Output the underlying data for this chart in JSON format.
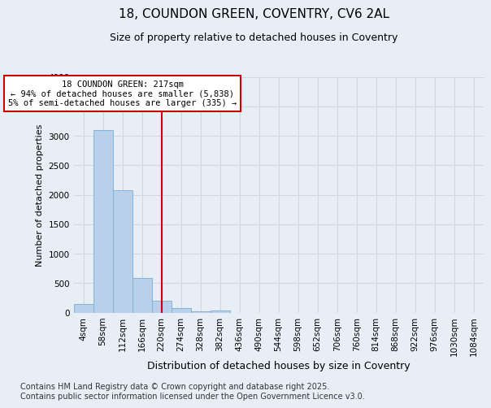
{
  "title1": "18, COUNDON GREEN, COVENTRY, CV6 2AL",
  "title2": "Size of property relative to detached houses in Coventry",
  "xlabel": "Distribution of detached houses by size in Coventry",
  "ylabel": "Number of detached properties",
  "bar_values": [
    150,
    3100,
    2080,
    580,
    205,
    70,
    25,
    40,
    0,
    0,
    0,
    0,
    0,
    0,
    0,
    0,
    0,
    0,
    0,
    0,
    0
  ],
  "bin_labels": [
    "4sqm",
    "58sqm",
    "112sqm",
    "166sqm",
    "220sqm",
    "274sqm",
    "328sqm",
    "382sqm",
    "436sqm",
    "490sqm",
    "544sqm",
    "598sqm",
    "652sqm",
    "706sqm",
    "760sqm",
    "814sqm",
    "868sqm",
    "922sqm",
    "976sqm",
    "1030sqm",
    "1084sqm"
  ],
  "bar_color": "#b8d0ea",
  "bar_edge_color": "#7aaed4",
  "vline_x": 4.0,
  "vline_color": "#cc0000",
  "ylim": [
    0,
    4000
  ],
  "yticks": [
    0,
    500,
    1000,
    1500,
    2000,
    2500,
    3000,
    3500,
    4000
  ],
  "annotation_text": "18 COUNDON GREEN: 217sqm\n← 94% of detached houses are smaller (5,838)\n5% of semi-detached houses are larger (335) →",
  "annotation_box_color": "#ffffff",
  "annotation_box_edge": "#cc0000",
  "bg_color": "#e8eef5",
  "footnote": "Contains HM Land Registry data © Crown copyright and database right 2025.\nContains public sector information licensed under the Open Government Licence v3.0.",
  "grid_color": "#d0d8e8",
  "title1_fontsize": 11,
  "title2_fontsize": 9,
  "xlabel_fontsize": 9,
  "ylabel_fontsize": 8,
  "tick_fontsize": 7.5,
  "footnote_fontsize": 7
}
